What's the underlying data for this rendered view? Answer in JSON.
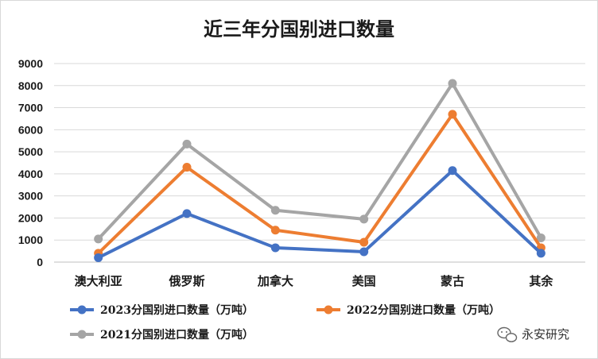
{
  "chart_data": {
    "type": "line",
    "title": "近三年分国别进口数量",
    "categories": [
      "澳大利亚",
      "俄罗斯",
      "加拿大",
      "美国",
      "蒙古",
      "其余"
    ],
    "ylim": [
      0,
      9000
    ],
    "yticks": [
      0,
      1000,
      2000,
      3000,
      4000,
      5000,
      6000,
      7000,
      8000,
      9000
    ],
    "grid": "horizontal",
    "legend_position": "bottom",
    "series": [
      {
        "name": "2023分国别进口数量（万吨）",
        "color": "#4472c4",
        "values": [
          200,
          2200,
          650,
          470,
          4150,
          400
        ]
      },
      {
        "name": "2022分国别进口数量（万吨）",
        "color": "#ed7d31",
        "values": [
          400,
          4300,
          1450,
          900,
          6700,
          650
        ]
      },
      {
        "name": "2021分国别进口数量（万吨）",
        "color": "#a5a5a5",
        "values": [
          1050,
          5350,
          2350,
          1950,
          8100,
          1100
        ]
      }
    ]
  },
  "watermark": {
    "text": "永安研究",
    "icon": "wechat-icon"
  }
}
